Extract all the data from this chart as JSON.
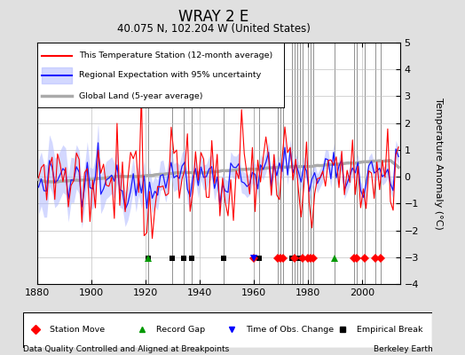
{
  "title": "WRAY 2 E",
  "subtitle": "40.075 N, 102.204 W (United States)",
  "xlabel_note": "Data Quality Controlled and Aligned at Breakpoints",
  "xlabel_note_right": "Berkeley Earth",
  "ylabel": "Temperature Anomaly (°C)",
  "xlim": [
    1880,
    2014
  ],
  "ylim": [
    -4,
    5
  ],
  "yticks": [
    -4,
    -3,
    -2,
    -1,
    0,
    1,
    2,
    3,
    4,
    5
  ],
  "xticks": [
    1880,
    1900,
    1920,
    1940,
    1960,
    1980,
    2000
  ],
  "bg_color": "#e0e0e0",
  "plot_bg_color": "#ffffff",
  "grid_color": "#c0c0c0",
  "uncertainty_color": "#b0b8ff",
  "uncertainty_alpha": 0.55,
  "regional_color": "#1a1aff",
  "station_color": "#ff0000",
  "global_color": "#aaaaaa",
  "station_moves": [
    1960,
    1969,
    1970,
    1971,
    1975,
    1978,
    1980,
    1981,
    1982,
    1997,
    1998,
    2001,
    2005,
    2007
  ],
  "record_gaps": [
    1921,
    1990
  ],
  "tobs_changes": [
    1960
  ],
  "emp_breaks": [
    1921,
    1930,
    1934,
    1937,
    1949,
    1962,
    1974,
    1975,
    1976,
    1977
  ]
}
